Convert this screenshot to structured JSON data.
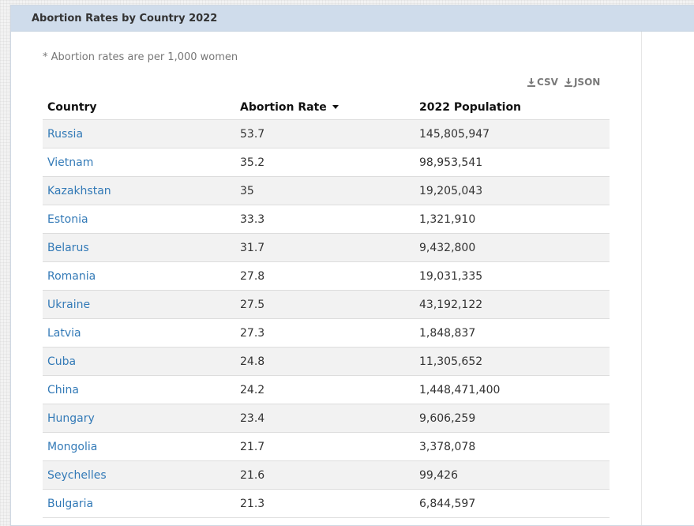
{
  "panel": {
    "title": "Abortion Rates by Country 2022"
  },
  "note": "* Abortion rates are per 1,000 women",
  "downloads": {
    "csv_label": "CSV",
    "json_label": "JSON"
  },
  "table": {
    "columns": [
      "Country",
      "Abortion Rate",
      "2022 Population"
    ],
    "sort": {
      "column": "Abortion Rate",
      "direction": "descending"
    },
    "rows": [
      {
        "country": "Russia",
        "rate": "53.7",
        "population": "145,805,947"
      },
      {
        "country": "Vietnam",
        "rate": "35.2",
        "population": "98,953,541"
      },
      {
        "country": "Kazakhstan",
        "rate": "35",
        "population": "19,205,043"
      },
      {
        "country": "Estonia",
        "rate": "33.3",
        "population": "1,321,910"
      },
      {
        "country": "Belarus",
        "rate": "31.7",
        "population": "9,432,800"
      },
      {
        "country": "Romania",
        "rate": "27.8",
        "population": "19,031,335"
      },
      {
        "country": "Ukraine",
        "rate": "27.5",
        "population": "43,192,122"
      },
      {
        "country": "Latvia",
        "rate": "27.3",
        "population": "1,848,837"
      },
      {
        "country": "Cuba",
        "rate": "24.8",
        "population": "11,305,652"
      },
      {
        "country": "China",
        "rate": "24.2",
        "population": "1,448,471,400"
      },
      {
        "country": "Hungary",
        "rate": "23.4",
        "population": "9,606,259"
      },
      {
        "country": "Mongolia",
        "rate": "21.7",
        "population": "3,378,078"
      },
      {
        "country": "Seychelles",
        "rate": "21.6",
        "population": "99,426"
      },
      {
        "country": "Bulgaria",
        "rate": "21.3",
        "population": "6,844,597"
      }
    ]
  },
  "colors": {
    "header_bg": "#cfdceb",
    "link": "#337ab7",
    "stripe": "#f2f2f2"
  },
  "icons": {
    "download": "download-icon",
    "sort": "sort-desc-icon"
  }
}
